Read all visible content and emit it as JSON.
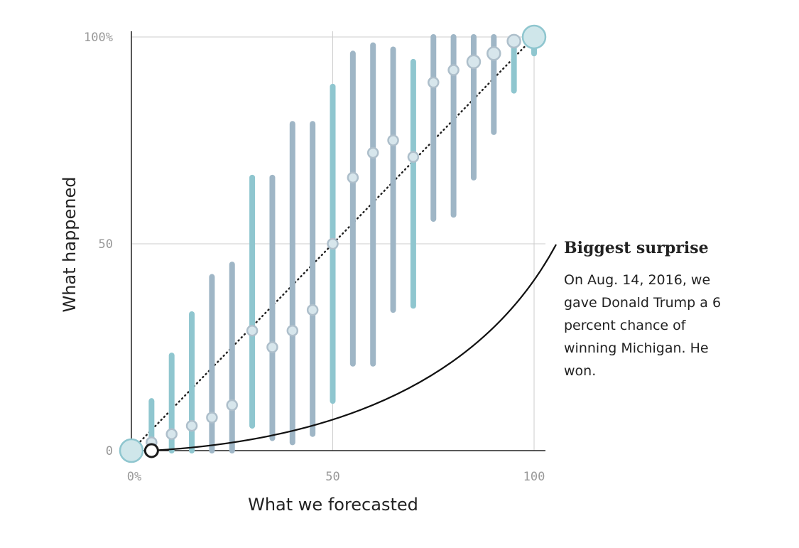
{
  "chart_data": {
    "type": "scatter",
    "title": "",
    "xlabel": "What we forecasted",
    "ylabel": "What happened",
    "xlim": [
      0,
      100
    ],
    "ylim": [
      0,
      100
    ],
    "x_ticks": [
      {
        "value": 0,
        "label": "0%"
      },
      {
        "value": 50,
        "label": "50"
      },
      {
        "value": 100,
        "label": "100"
      }
    ],
    "y_ticks": [
      {
        "value": 0,
        "label": "0"
      },
      {
        "value": 50,
        "label": "50"
      },
      {
        "value": 100,
        "label": "100%"
      }
    ],
    "grid": true,
    "colors": {
      "teal": "#8fc6cf",
      "slate": "#9fb6c6",
      "point_fill": "#d7e6ec",
      "point_stroke": "#aebfcb",
      "big_point_fill": "#cfe6ea",
      "highlight_stroke": "#1a1a1a"
    },
    "reference_line": {
      "from": [
        0,
        0
      ],
      "to": [
        100,
        100
      ],
      "style": "dotted"
    },
    "points": [
      {
        "x": 0,
        "y": 0,
        "low": 0,
        "high": 0,
        "size": "large",
        "color": "teal"
      },
      {
        "x": 5,
        "y": 2,
        "low": 0,
        "high": 12,
        "size": "small",
        "color": "teal"
      },
      {
        "x": 10,
        "y": 4,
        "low": 0,
        "high": 23,
        "size": "small",
        "color": "teal"
      },
      {
        "x": 15,
        "y": 6,
        "low": 0,
        "high": 33,
        "size": "small",
        "color": "teal"
      },
      {
        "x": 20,
        "y": 8,
        "low": 0,
        "high": 42,
        "size": "small",
        "color": "slate"
      },
      {
        "x": 25,
        "y": 11,
        "low": 0,
        "high": 45,
        "size": "small",
        "color": "slate"
      },
      {
        "x": 30,
        "y": 29,
        "low": 6,
        "high": 66,
        "size": "small",
        "color": "teal"
      },
      {
        "x": 35,
        "y": 25,
        "low": 3,
        "high": 66,
        "size": "small",
        "color": "slate"
      },
      {
        "x": 40,
        "y": 29,
        "low": 2,
        "high": 79,
        "size": "small",
        "color": "slate"
      },
      {
        "x": 45,
        "y": 34,
        "low": 4,
        "high": 79,
        "size": "small",
        "color": "slate"
      },
      {
        "x": 50,
        "y": 50,
        "low": 12,
        "high": 88,
        "size": "small",
        "color": "teal"
      },
      {
        "x": 55,
        "y": 66,
        "low": 21,
        "high": 96,
        "size": "small",
        "color": "slate"
      },
      {
        "x": 60,
        "y": 72,
        "low": 21,
        "high": 98,
        "size": "small",
        "color": "slate"
      },
      {
        "x": 65,
        "y": 75,
        "low": 34,
        "high": 97,
        "size": "small",
        "color": "slate"
      },
      {
        "x": 70,
        "y": 71,
        "low": 35,
        "high": 94,
        "size": "small",
        "color": "teal"
      },
      {
        "x": 75,
        "y": 89,
        "low": 56,
        "high": 100,
        "size": "small",
        "color": "slate"
      },
      {
        "x": 80,
        "y": 92,
        "low": 57,
        "high": 100,
        "size": "small",
        "color": "slate"
      },
      {
        "x": 85,
        "y": 94,
        "low": 66,
        "high": 100,
        "size": "medium",
        "color": "slate"
      },
      {
        "x": 90,
        "y": 96,
        "low": 77,
        "high": 100,
        "size": "medium",
        "color": "slate"
      },
      {
        "x": 95,
        "y": 99,
        "low": 87,
        "high": 100,
        "size": "medium",
        "color": "teal"
      },
      {
        "x": 100,
        "y": 100,
        "low": 96,
        "high": 100,
        "size": "large",
        "color": "teal"
      }
    ],
    "highlight": {
      "x": 5,
      "y": 0
    },
    "annotation": {
      "title": "Biggest surprise",
      "lines": [
        "On Aug. 14, 2016, we",
        "gave Donald Trump a 6",
        "percent chance of",
        "winning Michigan. He",
        "won."
      ]
    }
  }
}
